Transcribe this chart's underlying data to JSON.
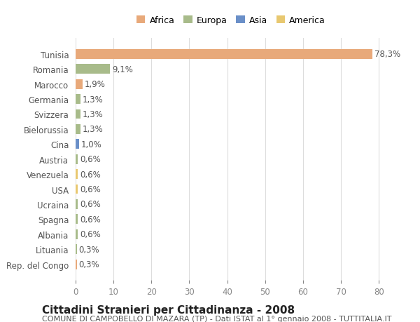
{
  "countries": [
    "Tunisia",
    "Romania",
    "Marocco",
    "Germania",
    "Svizzera",
    "Bielorussia",
    "Cina",
    "Austria",
    "Venezuela",
    "USA",
    "Ucraina",
    "Spagna",
    "Albania",
    "Lituania",
    "Rep. del Congo"
  ],
  "values": [
    78.3,
    9.1,
    1.9,
    1.3,
    1.3,
    1.3,
    1.0,
    0.6,
    0.6,
    0.6,
    0.6,
    0.6,
    0.6,
    0.3,
    0.3
  ],
  "labels": [
    "78,3%",
    "9,1%",
    "1,9%",
    "1,3%",
    "1,3%",
    "1,3%",
    "1,0%",
    "0,6%",
    "0,6%",
    "0,6%",
    "0,6%",
    "0,6%",
    "0,6%",
    "0,3%",
    "0,3%"
  ],
  "continents": [
    "Africa",
    "Europa",
    "Africa",
    "Europa",
    "Europa",
    "Europa",
    "Asia",
    "Europa",
    "America",
    "America",
    "Europa",
    "Europa",
    "Europa",
    "Europa",
    "Africa"
  ],
  "continent_colors": {
    "Africa": "#E8A97A",
    "Europa": "#A8BB8A",
    "Asia": "#6A8FC8",
    "America": "#E8C870"
  },
  "legend_order": [
    "Africa",
    "Europa",
    "Asia",
    "America"
  ],
  "title": "Cittadini Stranieri per Cittadinanza - 2008",
  "subtitle": "COMUNE DI CAMPOBELLO DI MAZARA (TP) - Dati ISTAT al 1° gennaio 2008 - TUTTITALIA.IT",
  "xlim": [
    0,
    82
  ],
  "xticks": [
    0,
    10,
    20,
    30,
    40,
    50,
    60,
    70,
    80
  ],
  "background_color": "#ffffff",
  "grid_color": "#dddddd",
  "bar_height": 0.65,
  "title_fontsize": 11,
  "subtitle_fontsize": 8,
  "tick_fontsize": 8.5,
  "label_fontsize": 8.5
}
